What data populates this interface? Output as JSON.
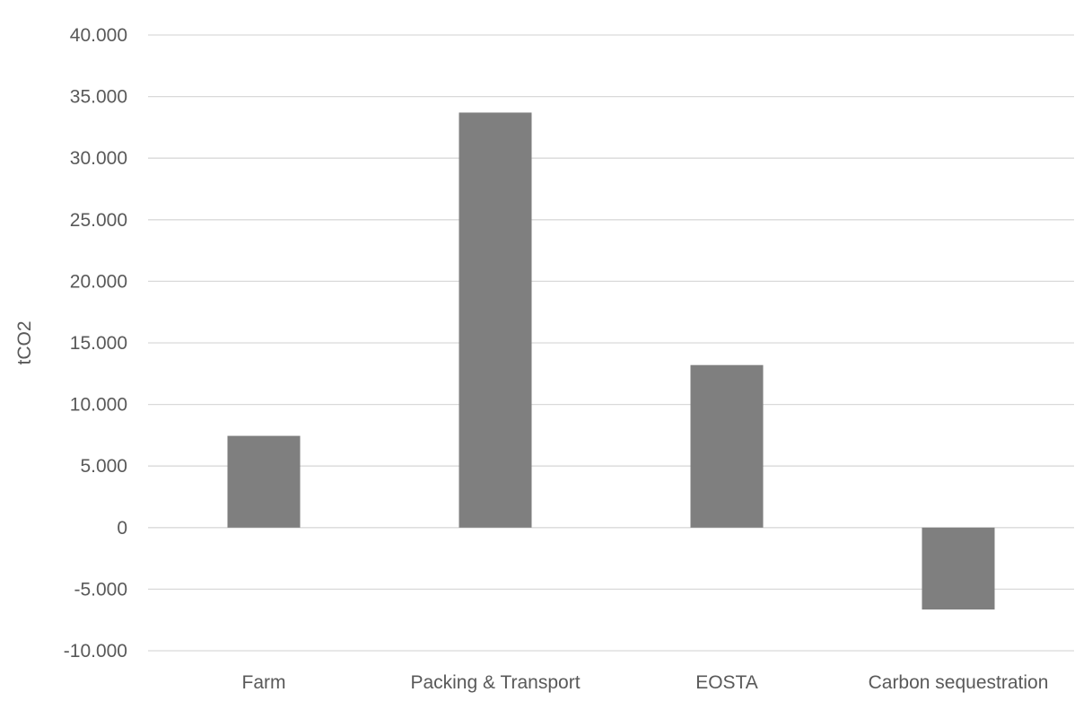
{
  "chart_data": {
    "type": "bar",
    "ylabel": "tCO2",
    "categories": [
      "Farm",
      "Packing & Transport",
      "EOSTA",
      "Carbon sequestration"
    ],
    "values": [
      7450,
      33700,
      13200,
      -6650
    ],
    "ylim": [
      -10000,
      40000
    ],
    "ytick_values": [
      -10000,
      -5000,
      0,
      5000,
      10000,
      15000,
      20000,
      25000,
      30000,
      35000,
      40000
    ],
    "ytick_labels": [
      "-10.000",
      "-5.000",
      "0",
      "5.000",
      "10.000",
      "15.000",
      "20.000",
      "25.000",
      "30.000",
      "35.000",
      "40.000"
    ],
    "grid": true,
    "legend": "none",
    "colors": {
      "bar": "#7f7f7f",
      "grid": "#d9d9d9",
      "text": "#595959"
    }
  }
}
